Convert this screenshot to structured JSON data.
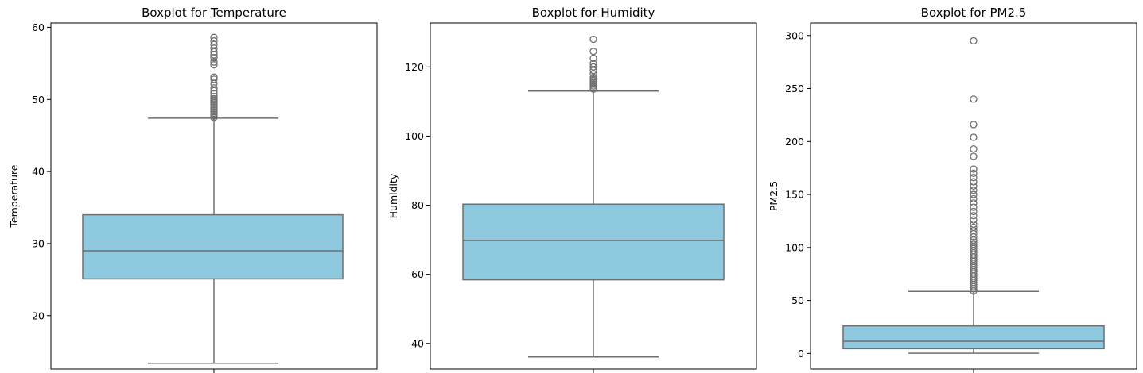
{
  "chart_data": [
    {
      "type": "box",
      "title": "Boxplot for Temperature",
      "ylabel": "Temperature",
      "ylim": [
        12.6,
        60.6
      ],
      "yticks": [
        20,
        30,
        40,
        50,
        60
      ],
      "color": "#8fc9e0",
      "edge_color": "#6f6f6f",
      "box": {
        "whisker_low": 13.4,
        "q1": 25.1,
        "median": 29.0,
        "q3": 34.0,
        "whisker_high": 47.4
      },
      "outliers": [
        47.5,
        47.7,
        47.9,
        48.1,
        48.3,
        48.5,
        48.7,
        48.9,
        49.1,
        49.3,
        49.5,
        49.7,
        49.9,
        50.1,
        50.4,
        50.8,
        51.2,
        51.6,
        52.2,
        52.8,
        53.1,
        54.8,
        55.2,
        55.8,
        56.2,
        56.6,
        57.1,
        57.6,
        58.1,
        58.6
      ]
    },
    {
      "type": "box",
      "title": "Boxplot for Humidity",
      "ylabel": "Humidity",
      "ylim": [
        32.6,
        132.7
      ],
      "yticks": [
        40,
        60,
        80,
        100,
        120
      ],
      "color": "#8fc9e0",
      "edge_color": "#6f6f6f",
      "box": {
        "whisker_low": 36.1,
        "q1": 58.4,
        "median": 69.8,
        "q3": 80.3,
        "whisker_high": 113.0
      },
      "outliers": [
        113.6,
        114.0,
        114.5,
        115.0,
        115.5,
        116.0,
        116.5,
        117.0,
        118.0,
        119.0,
        120.0,
        121.0,
        122.5,
        124.5,
        128.0
      ]
    },
    {
      "type": "box",
      "title": "Boxplot for PM2.5",
      "ylabel": "PM2.5",
      "ylim": [
        -14.7,
        311.8
      ],
      "yticks": [
        0,
        50,
        100,
        150,
        200,
        250,
        300
      ],
      "color": "#8fc9e0",
      "edge_color": "#6f6f6f",
      "box": {
        "whisker_low": 0.2,
        "q1": 4.5,
        "median": 11.5,
        "q3": 26.0,
        "whisker_high": 58.5
      },
      "outliers": [
        59,
        61,
        63,
        65,
        67,
        69,
        71,
        73,
        75,
        77,
        79,
        81,
        83,
        85,
        87,
        89,
        91,
        93,
        95,
        97,
        99,
        101,
        103,
        105,
        107,
        110,
        113,
        116,
        119,
        122,
        126,
        130,
        134,
        138,
        142,
        146,
        150,
        154,
        158,
        162,
        166,
        170,
        174,
        186,
        193,
        204,
        216,
        240,
        295
      ]
    }
  ]
}
